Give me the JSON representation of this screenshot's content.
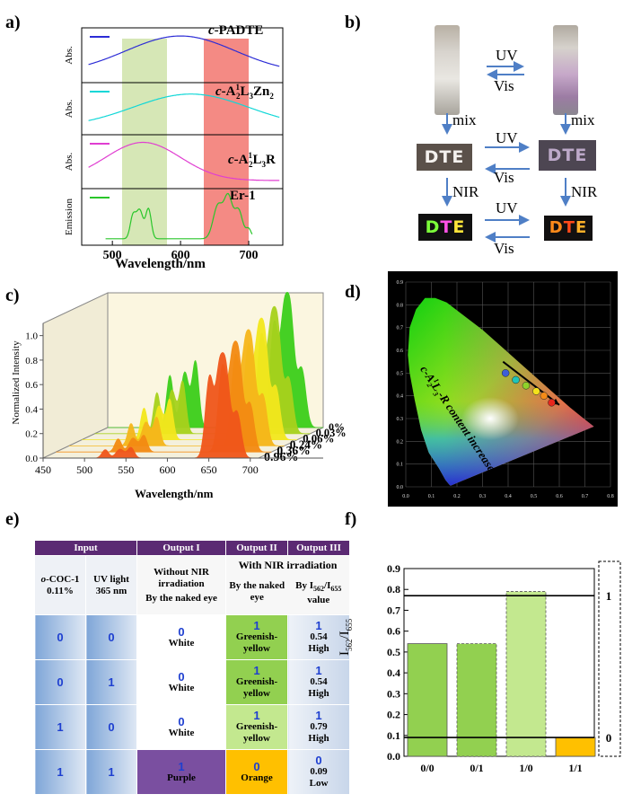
{
  "panels": {
    "a": "a)",
    "b": "b)",
    "c": "c)",
    "d": "d)",
    "e": "e)",
    "f": "f)"
  },
  "panel_a": {
    "rows": [
      {
        "ylabel": "Abs.",
        "name_prefix": "c",
        "name_main": "-PADTE",
        "sub1": "",
        "mid": "",
        "sub2": "",
        "tail": "",
        "legend_color": "#2c2cd6"
      },
      {
        "ylabel": "Abs.",
        "name_prefix": "c",
        "name_main": "-A",
        "sup": "1",
        "sub1": "2",
        "mid": "L",
        "sub2": "3",
        "tail": "Zn",
        "sub3": "2",
        "legend_color": "#10d7d7"
      },
      {
        "ylabel": "Abs.",
        "name_prefix": "c",
        "name_main": "-A",
        "sup": "1",
        "sub1": "2",
        "mid": "L",
        "sub2": "3",
        "tail": "R",
        "sub3": "",
        "legend_color": "#e03ed1"
      },
      {
        "ylabel": "Emission",
        "name_prefix": "",
        "name_main": "Er-1",
        "legend_color": "#29c62a"
      }
    ],
    "xticks": [
      "500",
      "600",
      "700"
    ],
    "xlabel": "Wavelength/nm"
  },
  "panel_b": {
    "arrow_top_uv": "UV",
    "arrow_top_vis": "Vis",
    "mix_left": "mix",
    "mix_right": "mix",
    "mid_uv": "UV",
    "mid_vis": "Vis",
    "nir_left": "NIR",
    "nir_right": "NIR",
    "bot_uv": "UV",
    "bot_vis": "Vis",
    "pattern_text": "DTE"
  },
  "chart_data": [
    {
      "type": "line",
      "panel": "c",
      "xlabel": "Wavelength/nm",
      "ylabel": "Normalized Intensity",
      "xticks": [
        "450",
        "500",
        "550",
        "600",
        "650",
        "700"
      ],
      "yticks": [
        "0.0",
        "0.2",
        "0.4",
        "0.6",
        "0.8",
        "1.0"
      ],
      "xlim": [
        450,
        710
      ],
      "ylim": [
        0,
        1.1
      ],
      "series": [
        {
          "name": "0%",
          "color": "#3ccf1a",
          "peak_562": 0.56,
          "peak_655": 1.0
        },
        {
          "name": "0.03%",
          "color": "#a7d21c",
          "peak_562": 0.44,
          "peak_655": 0.94
        },
        {
          "name": "0.06%",
          "color": "#f3e81d",
          "peak_562": 0.34,
          "peak_655": 0.9
        },
        {
          "name": "0.24%",
          "color": "#f6b61a",
          "peak_562": 0.24,
          "peak_655": 0.86
        },
        {
          "name": "0.36%",
          "color": "#f38a12",
          "peak_562": 0.14,
          "peak_655": 0.82
        },
        {
          "name": "0.96%",
          "color": "#f0561a",
          "peak_562": 0.09,
          "peak_655": 0.78
        }
      ]
    },
    {
      "type": "scatter",
      "panel": "d",
      "title": "",
      "xticks": [
        "0.0",
        "0.1",
        "0.2",
        "0.3",
        "0.4",
        "0.5",
        "0.6",
        "0.7",
        "0.8"
      ],
      "yticks": [
        "0.0",
        "0.1",
        "0.2",
        "0.3",
        "0.4",
        "0.5",
        "0.6",
        "0.7",
        "0.8",
        "0.9"
      ],
      "annotation_prefix": "c-A",
      "annotation_sup": "1",
      "annotation_sub1": "2",
      "annotation_mid": "L",
      "annotation_sub2": "3",
      "annotation_tail": "-R content increased",
      "points": [
        {
          "x": 0.39,
          "y": 0.5,
          "color": "#3d5fd8"
        },
        {
          "x": 0.43,
          "y": 0.47,
          "color": "#1fc4b8"
        },
        {
          "x": 0.47,
          "y": 0.445,
          "color": "#8fd22a"
        },
        {
          "x": 0.51,
          "y": 0.42,
          "color": "#f4e21c"
        },
        {
          "x": 0.54,
          "y": 0.4,
          "color": "#f58b18"
        },
        {
          "x": 0.57,
          "y": 0.37,
          "color": "#e8261c"
        }
      ]
    },
    {
      "type": "bar",
      "panel": "f",
      "categories": [
        "0/0",
        "0/1",
        "1/0",
        "1/1"
      ],
      "values": [
        0.54,
        0.54,
        0.79,
        0.09
      ],
      "colors": [
        "#92d050",
        "#92d050",
        "#c3e88f",
        "#ffc000"
      ],
      "ylabel": "I562/I655",
      "ylabel_main": "I",
      "ylabel_sub1": "562",
      "ylabel_sep": "/I",
      "ylabel_sub2": "655",
      "yticks": [
        "0.0",
        "0.1",
        "0.2",
        "0.3",
        "0.4",
        "0.5",
        "0.6",
        "0.7",
        "0.8",
        "0.9"
      ],
      "ylim": [
        0,
        0.9
      ],
      "thresholds": [
        {
          "value": 0.77,
          "label": "1"
        },
        {
          "value": 0.09,
          "label": "0"
        }
      ]
    }
  ],
  "table": {
    "headers": {
      "input": "Input",
      "out1": "Output I",
      "out2": "Output II",
      "out3": "Output III"
    },
    "sub": {
      "coc_prefix": "o",
      "coc_main": "-COC-1",
      "coc_conc": "0.11%",
      "uv": "UV light",
      "uv_nm": "365 nm",
      "without": "Without NIR irradiation",
      "by_eye": "By the naked eye",
      "with": "With NIR irradiation",
      "by_eye2": "By the naked eye",
      "by_ratio_pre": "By I",
      "by_ratio_s1": "562",
      "by_ratio_mid": "/I",
      "by_ratio_s2": "655",
      "by_ratio_post": "value"
    },
    "rows": [
      {
        "in1": "0",
        "in2": "0",
        "o1": "0",
        "o1t": "White",
        "o2": "1",
        "o2t": "Greenish-yellow",
        "o3": "1",
        "o3v": "0.54",
        "o3t": "High"
      },
      {
        "in1": "0",
        "in2": "1",
        "o1": "0",
        "o1t": "White",
        "o2": "1",
        "o2t": "Greenish-yellow",
        "o3": "1",
        "o3v": "0.54",
        "o3t": "High"
      },
      {
        "in1": "1",
        "in2": "0",
        "o1": "0",
        "o1t": "White",
        "o2": "1",
        "o2t": "Greenish-yellow",
        "o3": "1",
        "o3v": "0.79",
        "o3t": "High"
      },
      {
        "in1": "1",
        "in2": "1",
        "o1": "1",
        "o1t": "Purple",
        "o2": "0",
        "o2t": "Orange",
        "o3": "0",
        "o3v": "0.09",
        "o3t": "Low"
      }
    ]
  }
}
